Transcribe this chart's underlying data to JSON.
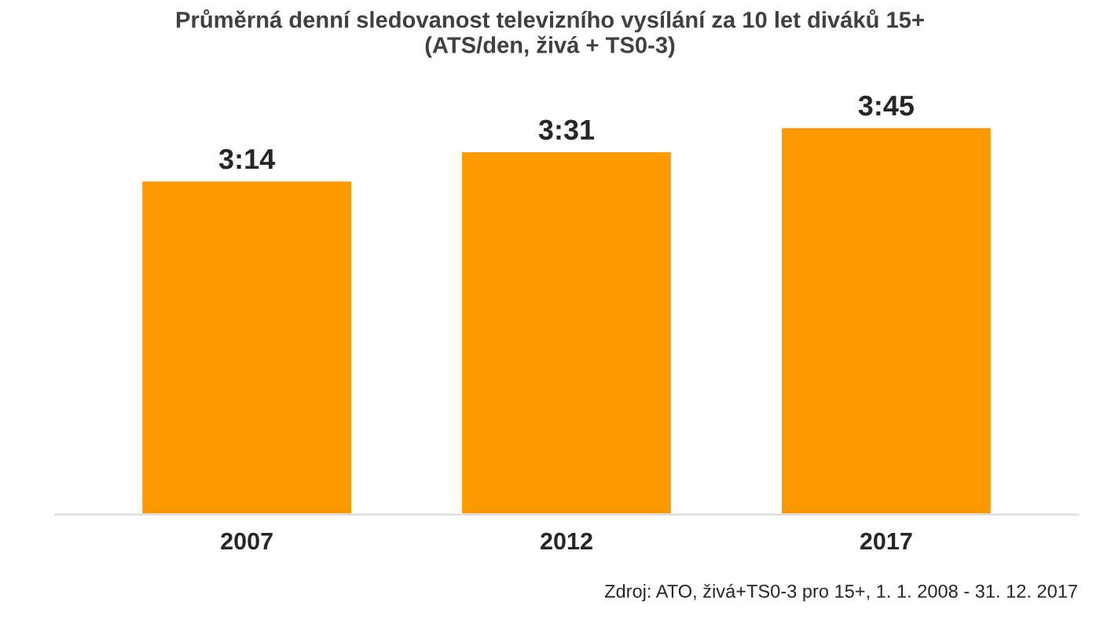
{
  "chart_data": {
    "type": "bar",
    "title": "Průměrná denní sledovanost televizního vysílání za 10 let diváků 15+\n(ATS/den, živá + TS0-3)",
    "categories": [
      "2007",
      "2012",
      "2017"
    ],
    "values": [
      194,
      211,
      225
    ],
    "value_labels": [
      "3:14",
      "3:31",
      "3:45"
    ],
    "color": "#ff9900",
    "grid": false,
    "legend": false,
    "tick_labels": "x",
    "annotations": [
      "Zdroj: ATO, živá+TS0-3 pro 15+, 1. 1. 2008 - 31. 12. 2017"
    ]
  }
}
